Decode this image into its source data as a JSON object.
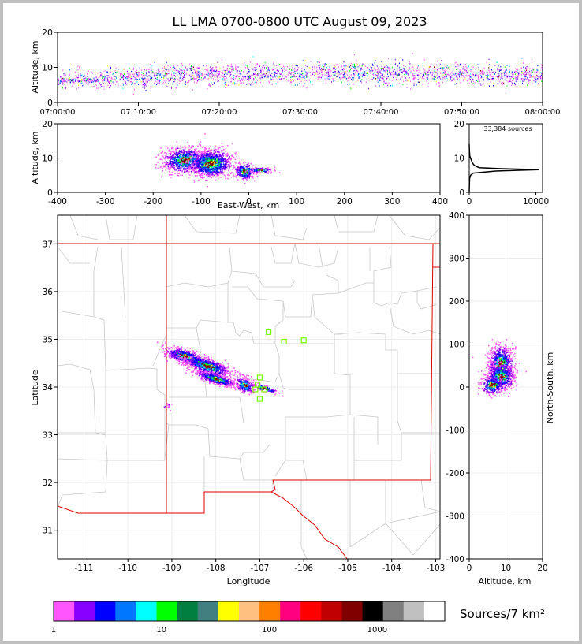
{
  "title": "LL LMA 0700-0800 UTC August 09, 2023",
  "colors": {
    "source": "#ff00ff",
    "border_state": "#dd0000",
    "border_county": "#c8c8c8",
    "station": "#7cfc00"
  },
  "chart_data": [
    {
      "id": "alt_time",
      "type": "scatter",
      "ylabel": "Altitude, km",
      "ylim": [
        0,
        20
      ],
      "yticks": [
        0,
        10,
        20
      ],
      "xlim_minutes": [
        0,
        60
      ],
      "xticks": [
        "07:00:00",
        "07:10:00",
        "07:20:00",
        "07:30:00",
        "07:40:00",
        "07:50:00",
        "08:00:00"
      ],
      "band_center_km": [
        6.5,
        8.5
      ],
      "band_spread_km": 3
    },
    {
      "id": "alt_ew",
      "type": "heatmap",
      "xlabel": "East-West, km",
      "ylabel": "Altitude, km",
      "xlim": [
        -400,
        400
      ],
      "ylim": [
        0,
        20
      ],
      "xticks": [
        -400,
        -300,
        -200,
        -100,
        0,
        100,
        200,
        300,
        400
      ],
      "yticks": [
        0,
        10,
        20
      ],
      "clusters": [
        {
          "x": -135,
          "y": 9.5,
          "sx": 22,
          "sy": 1.8,
          "n": 900
        },
        {
          "x": -80,
          "y": 8.5,
          "sx": 22,
          "sy": 2.0,
          "n": 1100
        },
        {
          "x": -10,
          "y": 6.2,
          "sx": 10,
          "sy": 1.2,
          "n": 300
        },
        {
          "x": 25,
          "y": 6.6,
          "sx": 12,
          "sy": 0.4,
          "n": 120
        }
      ]
    },
    {
      "id": "alt_hist",
      "type": "line",
      "annotation": "33,384 sources",
      "xlim": [
        0,
        11000
      ],
      "ylim": [
        0,
        20
      ],
      "xticks": [
        0,
        10000
      ],
      "yticks": [
        0,
        10,
        20
      ],
      "points": [
        [
          0,
          0
        ],
        [
          20,
          2
        ],
        [
          60,
          4
        ],
        [
          200,
          5
        ],
        [
          600,
          5.6
        ],
        [
          4000,
          6.2
        ],
        [
          10500,
          6.6
        ],
        [
          5000,
          6.9
        ],
        [
          1500,
          7.2
        ],
        [
          800,
          7.8
        ],
        [
          500,
          8.5
        ],
        [
          300,
          9.5
        ],
        [
          100,
          10.5
        ],
        [
          40,
          12
        ],
        [
          0,
          14
        ]
      ]
    },
    {
      "id": "plan_view",
      "type": "scatter",
      "xlabel": "Longitude",
      "ylabel": "Latitude",
      "xlim": [
        -111.6,
        -102.9
      ],
      "ylim": [
        30.4,
        37.6
      ],
      "xticks": [
        -111,
        -110,
        -109,
        -108,
        -107,
        -106,
        -105,
        -104,
        -103
      ],
      "yticks": [
        31,
        32,
        33,
        34,
        35,
        36,
        37
      ],
      "stations": [
        [
          -106.8,
          35.15
        ],
        [
          -106.45,
          34.95
        ],
        [
          -106.0,
          34.98
        ],
        [
          -107.0,
          34.2
        ],
        [
          -107.05,
          34.05
        ],
        [
          -106.9,
          33.95
        ],
        [
          -107.1,
          33.95
        ],
        [
          -107.0,
          33.75
        ]
      ],
      "clusters": [
        {
          "x": -108.7,
          "y": 34.65,
          "sx": 0.22,
          "sy": 0.07,
          "n": 700
        },
        {
          "x": -108.2,
          "y": 34.45,
          "sx": 0.25,
          "sy": 0.08,
          "n": 700
        },
        {
          "x": -108.0,
          "y": 34.18,
          "sx": 0.22,
          "sy": 0.05,
          "n": 600
        },
        {
          "x": -107.35,
          "y": 34.05,
          "sx": 0.1,
          "sy": 0.08,
          "n": 250
        },
        {
          "x": -106.9,
          "y": 33.98,
          "sx": 0.15,
          "sy": 0.03,
          "n": 120
        }
      ]
    },
    {
      "id": "ns_alt",
      "type": "heatmap",
      "xlabel": "Altitude, km",
      "ylabel": "North-South, km",
      "xlim": [
        0,
        20
      ],
      "ylim": [
        -400,
        400
      ],
      "xticks": [
        0,
        10,
        20
      ],
      "yticks": [
        -400,
        -300,
        -200,
        -100,
        0,
        100,
        200,
        300,
        400
      ],
      "clusters": [
        {
          "x": 8.5,
          "y": 55,
          "sx": 1.6,
          "sy": 20,
          "n": 900
        },
        {
          "x": 8.5,
          "y": 25,
          "sx": 1.8,
          "sy": 15,
          "n": 700
        },
        {
          "x": 6.2,
          "y": 5,
          "sx": 1.6,
          "sy": 10,
          "n": 300
        }
      ]
    }
  ],
  "colorbar": {
    "label": "Sources/7 km²",
    "ticks": [
      "1",
      "10",
      "100",
      "1000"
    ],
    "colors": [
      "#ff55ff",
      "#8800ff",
      "#0000ff",
      "#0077ff",
      "#00ffff",
      "#00ff00",
      "#007f40",
      "#408080",
      "#ffff00",
      "#ffc080",
      "#ff8000",
      "#ff0080",
      "#ff0000",
      "#c00000",
      "#800000",
      "#000000",
      "#808080",
      "#c0c0c0",
      "#ffffff"
    ]
  }
}
